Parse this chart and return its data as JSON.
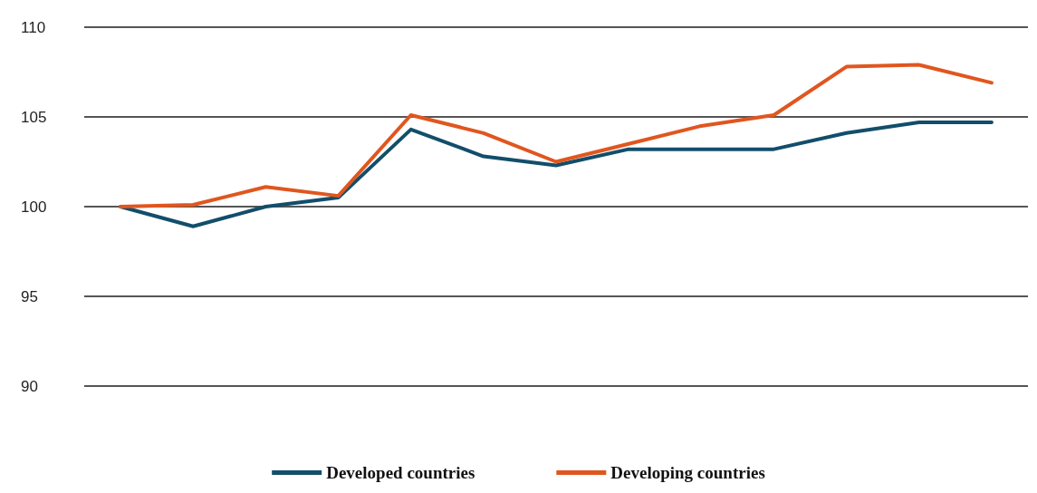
{
  "chart_data": {
    "type": "line",
    "categories": [
      null,
      null,
      null,
      null,
      null,
      null,
      null,
      null,
      null,
      null,
      null,
      null,
      null
    ],
    "series": [
      {
        "name": "Developed countries",
        "color": "#124e6b",
        "values": [
          100,
          98.9,
          100,
          100.5,
          104.3,
          102.8,
          102.3,
          103.2,
          103.2,
          103.2,
          104.1,
          104.7,
          104.7
        ]
      },
      {
        "name": "Developing countries",
        "color": "#e0561f",
        "values": [
          100,
          100.1,
          101.1,
          100.6,
          105.1,
          104.1,
          102.5,
          103.5,
          104.5,
          105.1,
          107.8,
          107.9,
          106.9
        ]
      }
    ],
    "ylim": [
      90,
      110
    ],
    "yticks": [
      90,
      95,
      100,
      105,
      110
    ],
    "grid": "y",
    "legend": "bottom",
    "marker": "none",
    "line_style": "solid"
  }
}
